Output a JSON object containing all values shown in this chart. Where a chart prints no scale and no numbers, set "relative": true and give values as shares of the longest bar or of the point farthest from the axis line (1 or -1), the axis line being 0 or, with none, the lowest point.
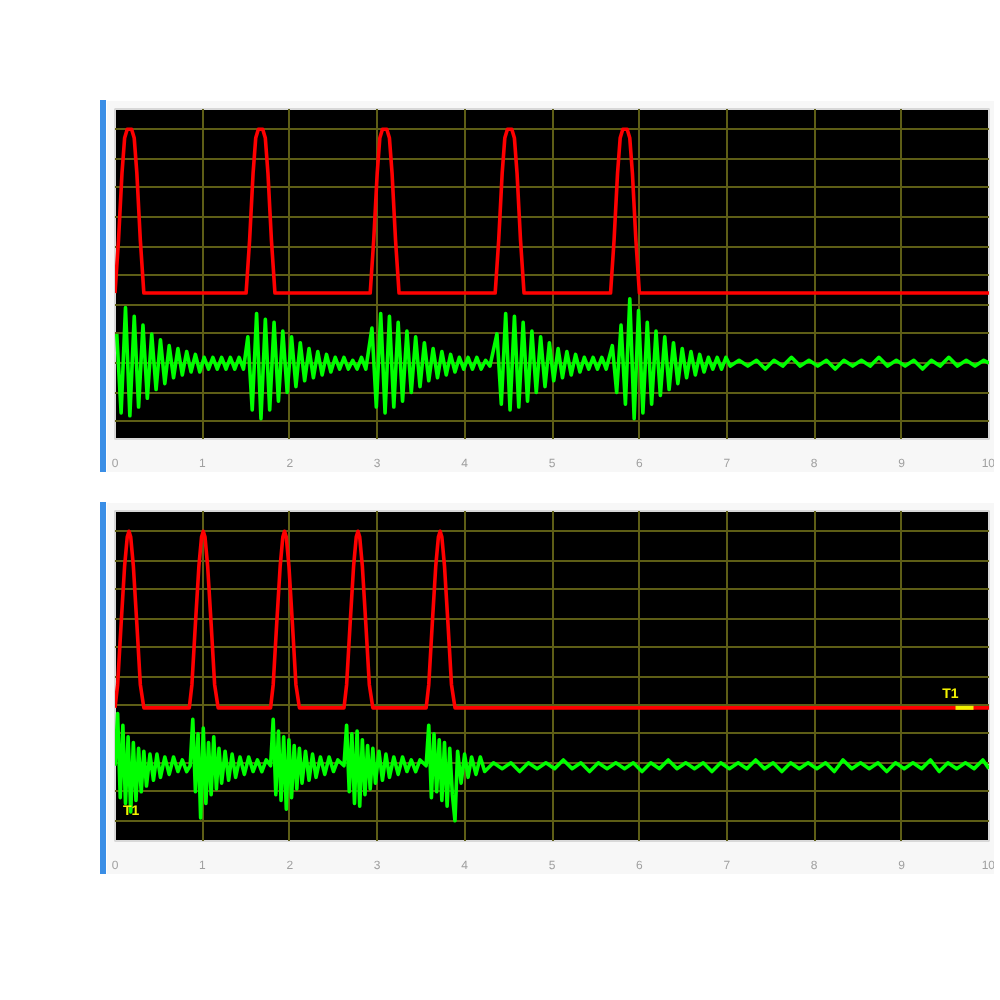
{
  "chart_data": [
    {
      "type": "line",
      "relative": true,
      "xlim": [
        0,
        10
      ],
      "xticks": [
        0,
        1,
        2,
        3,
        4,
        5,
        6,
        7,
        8,
        9,
        10
      ],
      "grid": true,
      "series": [
        {
          "color": "#ff0000",
          "x": [
            0.0,
            0.04,
            0.08,
            0.11,
            0.14,
            0.19,
            0.22,
            0.25,
            0.29,
            0.33,
            1.5,
            1.54,
            1.58,
            1.61,
            1.64,
            1.69,
            1.72,
            1.75,
            1.79,
            1.83,
            2.92,
            2.96,
            3.0,
            3.03,
            3.06,
            3.11,
            3.14,
            3.17,
            3.21,
            3.25,
            4.35,
            4.39,
            4.43,
            4.46,
            4.49,
            4.54,
            4.57,
            4.6,
            4.64,
            4.68,
            5.67,
            5.71,
            5.75,
            5.78,
            5.81,
            5.86,
            5.89,
            5.92,
            5.96,
            6.0,
            10.0
          ],
          "values": [
            0.44,
            0.62,
            0.85,
            0.97,
            1.0,
            1.0,
            0.97,
            0.85,
            0.62,
            0.44,
            0.44,
            0.62,
            0.85,
            0.97,
            1.0,
            1.0,
            0.97,
            0.85,
            0.62,
            0.44,
            0.44,
            0.62,
            0.85,
            0.97,
            1.0,
            1.0,
            0.97,
            0.85,
            0.62,
            0.44,
            0.44,
            0.62,
            0.85,
            0.97,
            1.0,
            1.0,
            0.97,
            0.85,
            0.62,
            0.44,
            0.44,
            0.62,
            0.85,
            0.97,
            1.0,
            1.0,
            0.97,
            0.85,
            0.62,
            0.44,
            0.44
          ]
        },
        {
          "color": "#00ff00",
          "x": [
            0.02,
            0.07,
            0.12,
            0.17,
            0.22,
            0.27,
            0.32,
            0.37,
            0.42,
            0.47,
            0.52,
            0.57,
            0.62,
            0.67,
            0.72,
            0.77,
            0.82,
            0.87,
            0.92,
            0.97,
            1.02,
            1.07,
            1.12,
            1.17,
            1.22,
            1.27,
            1.32,
            1.37,
            1.42,
            1.47,
            1.52,
            1.57,
            1.62,
            1.67,
            1.72,
            1.77,
            1.82,
            1.87,
            1.92,
            1.97,
            2.02,
            2.07,
            2.12,
            2.17,
            2.22,
            2.27,
            2.32,
            2.37,
            2.42,
            2.47,
            2.52,
            2.57,
            2.62,
            2.67,
            2.72,
            2.77,
            2.82,
            2.87,
            2.94,
            2.99,
            3.04,
            3.09,
            3.14,
            3.19,
            3.24,
            3.29,
            3.34,
            3.39,
            3.44,
            3.49,
            3.54,
            3.59,
            3.64,
            3.69,
            3.74,
            3.79,
            3.84,
            3.89,
            3.94,
            3.99,
            4.04,
            4.09,
            4.14,
            4.19,
            4.24,
            4.29,
            4.37,
            4.42,
            4.47,
            4.52,
            4.57,
            4.62,
            4.67,
            4.72,
            4.77,
            4.82,
            4.87,
            4.92,
            4.97,
            5.02,
            5.07,
            5.12,
            5.17,
            5.22,
            5.27,
            5.32,
            5.37,
            5.42,
            5.47,
            5.52,
            5.57,
            5.62,
            5.69,
            5.74,
            5.79,
            5.84,
            5.89,
            5.94,
            5.99,
            6.04,
            6.09,
            6.14,
            6.19,
            6.24,
            6.29,
            6.34,
            6.39,
            6.44,
            6.49,
            6.54,
            6.59,
            6.64,
            6.69,
            6.74,
            6.79,
            6.84,
            6.89,
            6.94,
            6.99,
            7.04,
            7.14,
            7.24,
            7.34,
            7.44,
            7.54,
            7.64,
            7.74,
            7.84,
            7.94,
            8.04,
            8.14,
            8.24,
            8.34,
            8.44,
            8.54,
            8.64,
            8.74,
            8.84,
            8.94,
            9.04,
            9.14,
            9.24,
            9.34,
            9.44,
            9.54,
            9.64,
            9.74,
            9.84,
            9.94,
            10.0
          ],
          "values": [
            0.3,
            0.03,
            0.39,
            0.02,
            0.36,
            0.05,
            0.33,
            0.08,
            0.3,
            0.11,
            0.28,
            0.13,
            0.26,
            0.15,
            0.25,
            0.16,
            0.24,
            0.17,
            0.23,
            0.17,
            0.22,
            0.18,
            0.22,
            0.18,
            0.22,
            0.18,
            0.22,
            0.18,
            0.22,
            0.18,
            0.29,
            0.04,
            0.37,
            0.01,
            0.35,
            0.04,
            0.34,
            0.07,
            0.31,
            0.1,
            0.29,
            0.12,
            0.27,
            0.14,
            0.25,
            0.15,
            0.24,
            0.16,
            0.23,
            0.17,
            0.22,
            0.18,
            0.22,
            0.18,
            0.21,
            0.18,
            0.22,
            0.18,
            0.32,
            0.05,
            0.37,
            0.03,
            0.36,
            0.05,
            0.34,
            0.07,
            0.31,
            0.1,
            0.29,
            0.12,
            0.27,
            0.14,
            0.25,
            0.15,
            0.24,
            0.16,
            0.23,
            0.17,
            0.22,
            0.18,
            0.22,
            0.18,
            0.22,
            0.18,
            0.21,
            0.19,
            0.3,
            0.06,
            0.37,
            0.04,
            0.36,
            0.05,
            0.34,
            0.07,
            0.31,
            0.1,
            0.29,
            0.12,
            0.27,
            0.14,
            0.25,
            0.15,
            0.24,
            0.16,
            0.23,
            0.17,
            0.22,
            0.18,
            0.22,
            0.18,
            0.22,
            0.18,
            0.26,
            0.1,
            0.33,
            0.06,
            0.42,
            0.01,
            0.38,
            0.03,
            0.34,
            0.06,
            0.31,
            0.09,
            0.29,
            0.11,
            0.27,
            0.13,
            0.25,
            0.15,
            0.24,
            0.16,
            0.23,
            0.17,
            0.22,
            0.18,
            0.22,
            0.18,
            0.22,
            0.19,
            0.21,
            0.19,
            0.21,
            0.18,
            0.21,
            0.19,
            0.22,
            0.19,
            0.21,
            0.19,
            0.21,
            0.18,
            0.21,
            0.19,
            0.21,
            0.19,
            0.22,
            0.19,
            0.21,
            0.19,
            0.21,
            0.18,
            0.21,
            0.19,
            0.22,
            0.19,
            0.21,
            0.19,
            0.21,
            0.2
          ]
        }
      ]
    },
    {
      "type": "line",
      "relative": true,
      "xlim": [
        0,
        10
      ],
      "xticks": [
        0,
        1,
        2,
        3,
        4,
        5,
        6,
        7,
        8,
        9,
        10
      ],
      "grid": true,
      "annotations": [
        {
          "text": "T1",
          "x": 9.72,
          "y": 0.39
        },
        "T1"
      ],
      "series": [
        {
          "color": "#ff0000",
          "x": [
            0.0,
            0.03,
            0.07,
            0.11,
            0.14,
            0.16,
            0.18,
            0.21,
            0.25,
            0.29,
            0.33,
            0.85,
            0.88,
            0.92,
            0.96,
            0.99,
            1.01,
            1.03,
            1.06,
            1.1,
            1.14,
            1.18,
            1.78,
            1.81,
            1.85,
            1.89,
            1.92,
            1.94,
            1.96,
            1.99,
            2.03,
            2.07,
            2.11,
            2.62,
            2.65,
            2.69,
            2.73,
            2.76,
            2.78,
            2.8,
            2.83,
            2.87,
            2.91,
            2.95,
            3.56,
            3.59,
            3.63,
            3.67,
            3.7,
            3.72,
            3.74,
            3.77,
            3.81,
            3.85,
            3.89,
            10.0
          ],
          "values": [
            0.39,
            0.47,
            0.68,
            0.88,
            0.98,
            1.0,
            0.98,
            0.88,
            0.68,
            0.47,
            0.39,
            0.39,
            0.47,
            0.68,
            0.88,
            0.98,
            1.0,
            0.98,
            0.88,
            0.68,
            0.47,
            0.39,
            0.39,
            0.47,
            0.68,
            0.88,
            0.98,
            1.0,
            0.98,
            0.88,
            0.68,
            0.47,
            0.39,
            0.39,
            0.47,
            0.68,
            0.88,
            0.98,
            1.0,
            0.98,
            0.88,
            0.68,
            0.47,
            0.39,
            0.39,
            0.47,
            0.68,
            0.88,
            0.98,
            1.0,
            0.98,
            0.88,
            0.68,
            0.47,
            0.39,
            0.39
          ]
        },
        {
          "color": "#00ff00",
          "x": [
            0.0,
            0.03,
            0.06,
            0.09,
            0.12,
            0.15,
            0.18,
            0.21,
            0.24,
            0.27,
            0.3,
            0.33,
            0.36,
            0.4,
            0.44,
            0.48,
            0.52,
            0.57,
            0.62,
            0.67,
            0.72,
            0.77,
            0.82,
            0.86,
            0.89,
            0.92,
            0.95,
            0.98,
            1.01,
            1.04,
            1.07,
            1.1,
            1.13,
            1.16,
            1.19,
            1.22,
            1.26,
            1.3,
            1.34,
            1.38,
            1.43,
            1.48,
            1.53,
            1.58,
            1.63,
            1.68,
            1.73,
            1.78,
            1.81,
            1.84,
            1.87,
            1.9,
            1.93,
            1.96,
            1.99,
            2.02,
            2.05,
            2.08,
            2.11,
            2.14,
            2.18,
            2.22,
            2.26,
            2.3,
            2.35,
            2.4,
            2.45,
            2.5,
            2.55,
            2.62,
            2.65,
            2.68,
            2.71,
            2.74,
            2.77,
            2.8,
            2.83,
            2.86,
            2.89,
            2.92,
            2.95,
            2.98,
            3.02,
            3.06,
            3.1,
            3.14,
            3.19,
            3.24,
            3.29,
            3.34,
            3.39,
            3.44,
            3.49,
            3.56,
            3.59,
            3.62,
            3.65,
            3.68,
            3.71,
            3.74,
            3.77,
            3.8,
            3.83,
            3.86,
            3.89,
            3.92,
            3.96,
            4.0,
            4.04,
            4.08,
            4.13,
            4.18,
            4.23,
            4.33,
            4.43,
            4.53,
            4.63,
            4.73,
            4.83,
            4.93,
            5.03,
            5.13,
            5.23,
            5.33,
            5.43,
            5.53,
            5.63,
            5.73,
            5.83,
            5.93,
            6.03,
            6.13,
            6.23,
            6.33,
            6.43,
            6.53,
            6.63,
            6.73,
            6.83,
            6.93,
            7.03,
            7.13,
            7.23,
            7.33,
            7.43,
            7.53,
            7.63,
            7.73,
            7.83,
            7.93,
            8.03,
            8.13,
            8.23,
            8.33,
            8.43,
            8.53,
            8.63,
            8.73,
            8.83,
            8.93,
            9.03,
            9.13,
            9.23,
            9.33,
            9.43,
            9.53,
            9.63,
            9.73,
            9.83,
            9.93,
            10.0
          ],
          "values": [
            0.19,
            0.37,
            0.08,
            0.33,
            0.06,
            0.29,
            0.03,
            0.27,
            0.07,
            0.25,
            0.1,
            0.24,
            0.12,
            0.23,
            0.14,
            0.23,
            0.15,
            0.22,
            0.16,
            0.22,
            0.17,
            0.21,
            0.17,
            0.19,
            0.35,
            0.1,
            0.3,
            0.01,
            0.32,
            0.06,
            0.27,
            0.09,
            0.29,
            0.11,
            0.25,
            0.13,
            0.24,
            0.14,
            0.23,
            0.15,
            0.22,
            0.16,
            0.22,
            0.17,
            0.21,
            0.17,
            0.21,
            0.19,
            0.35,
            0.09,
            0.31,
            0.07,
            0.29,
            0.04,
            0.28,
            0.08,
            0.26,
            0.11,
            0.25,
            0.13,
            0.24,
            0.14,
            0.23,
            0.15,
            0.22,
            0.16,
            0.22,
            0.17,
            0.21,
            0.19,
            0.33,
            0.1,
            0.3,
            0.06,
            0.31,
            0.05,
            0.28,
            0.09,
            0.26,
            0.11,
            0.25,
            0.13,
            0.24,
            0.14,
            0.23,
            0.15,
            0.22,
            0.16,
            0.22,
            0.17,
            0.21,
            0.17,
            0.21,
            0.19,
            0.33,
            0.08,
            0.3,
            0.1,
            0.28,
            0.07,
            0.27,
            0.05,
            0.25,
            0.09,
            0.0,
            0.24,
            0.13,
            0.23,
            0.15,
            0.22,
            0.16,
            0.22,
            0.17,
            0.2,
            0.18,
            0.2,
            0.17,
            0.2,
            0.18,
            0.2,
            0.18,
            0.21,
            0.18,
            0.2,
            0.17,
            0.2,
            0.18,
            0.2,
            0.18,
            0.2,
            0.17,
            0.2,
            0.18,
            0.21,
            0.18,
            0.2,
            0.18,
            0.2,
            0.17,
            0.2,
            0.18,
            0.2,
            0.18,
            0.21,
            0.18,
            0.2,
            0.17,
            0.2,
            0.18,
            0.2,
            0.18,
            0.2,
            0.17,
            0.21,
            0.18,
            0.2,
            0.18,
            0.2,
            0.17,
            0.2,
            0.18,
            0.2,
            0.18,
            0.21,
            0.17,
            0.2,
            0.18,
            0.2,
            0.18,
            0.21,
            0.18
          ]
        }
      ]
    }
  ]
}
